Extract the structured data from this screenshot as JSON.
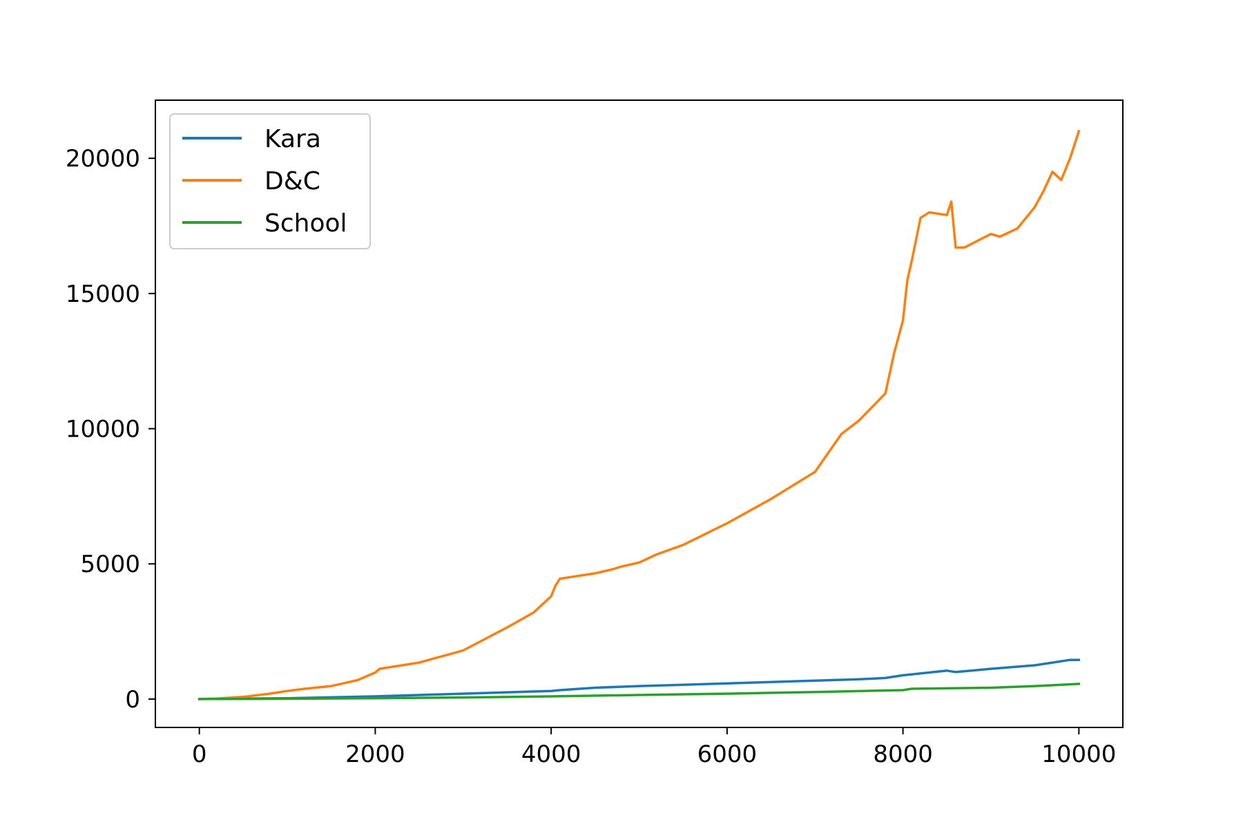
{
  "chart_data": {
    "type": "line",
    "title": "",
    "xlabel": "",
    "ylabel": "",
    "xlim": [
      -500,
      10500
    ],
    "ylim": [
      -1050,
      22150
    ],
    "xticks": [
      0,
      2000,
      4000,
      6000,
      8000,
      10000
    ],
    "yticks": [
      0,
      5000,
      10000,
      15000,
      20000
    ],
    "grid": false,
    "legend_position": "top-left",
    "series": [
      {
        "name": "Kara",
        "color": "#1f77b4",
        "x": [
          0,
          1000,
          2000,
          3000,
          4000,
          4100,
          4500,
          5000,
          5500,
          6000,
          6500,
          7000,
          7500,
          7800,
          8000,
          8500,
          8600,
          9000,
          9500,
          9700,
          9900,
          10000
        ],
        "y": [
          0,
          30,
          100,
          200,
          300,
          330,
          420,
          480,
          530,
          580,
          630,
          680,
          730,
          780,
          880,
          1050,
          1000,
          1120,
          1250,
          1350,
          1450,
          1450
        ]
      },
      {
        "name": "D&C",
        "color": "#ff7f0e",
        "x": [
          0,
          200,
          500,
          800,
          1000,
          1200,
          1500,
          1800,
          2000,
          2050,
          2500,
          3000,
          3500,
          3800,
          4000,
          4050,
          4100,
          4500,
          4700,
          4800,
          5000,
          5200,
          5500,
          6000,
          6500,
          7000,
          7300,
          7500,
          7800,
          7900,
          8000,
          8050,
          8100,
          8200,
          8300,
          8500,
          8550,
          8600,
          8700,
          9000,
          9100,
          9300,
          9500,
          9600,
          9700,
          9800,
          9900,
          9950,
          10000
        ],
        "y": [
          0,
          20,
          80,
          200,
          300,
          380,
          480,
          700,
          980,
          1120,
          1350,
          1800,
          2650,
          3200,
          3800,
          4200,
          4450,
          4650,
          4800,
          4900,
          5050,
          5350,
          5700,
          6500,
          7400,
          8400,
          9800,
          10300,
          11300,
          12800,
          14000,
          15500,
          16200,
          17800,
          18000,
          17900,
          18400,
          16700,
          16700,
          17200,
          17100,
          17400,
          18200,
          18800,
          19500,
          19200,
          20000,
          20500,
          21000
        ]
      },
      {
        "name": "School",
        "color": "#2ca02c",
        "x": [
          0,
          1000,
          2000,
          3000,
          4000,
          5000,
          6000,
          7000,
          8000,
          8100,
          9000,
          9500,
          10000
        ],
        "y": [
          0,
          10,
          30,
          60,
          100,
          150,
          200,
          260,
          330,
          380,
          420,
          480,
          560
        ]
      }
    ]
  }
}
